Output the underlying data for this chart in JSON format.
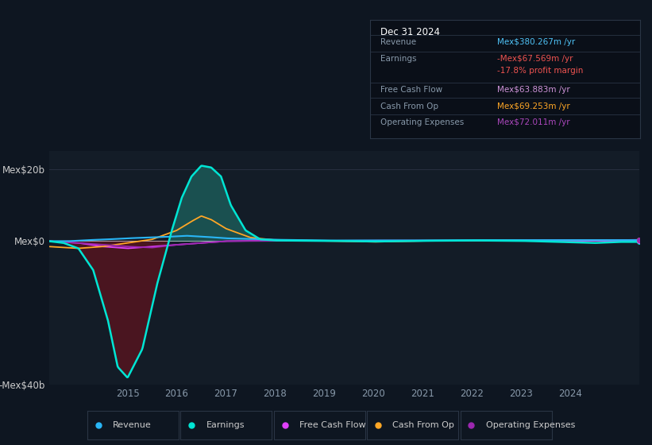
{
  "bg_color": "#0e1621",
  "plot_bg_color": "#131c27",
  "title_box": {
    "date": "Dec 31 2024",
    "rows": [
      {
        "label": "Revenue",
        "value": "Mex$380.267m /yr",
        "value_color": "#4fc3f7"
      },
      {
        "label": "Earnings",
        "value": "-Mex$67.569m /yr",
        "value_color": "#ef5350"
      },
      {
        "label": "",
        "value": "-17.8% profit margin",
        "value_color": "#ef5350"
      },
      {
        "label": "Free Cash Flow",
        "value": "Mex$63.883m /yr",
        "value_color": "#ce93d8"
      },
      {
        "label": "Cash From Op",
        "value": "Mex$69.253m /yr",
        "value_color": "#ffa726"
      },
      {
        "label": "Operating Expenses",
        "value": "Mex$72.011m /yr",
        "value_color": "#ab47bc"
      }
    ]
  },
  "ylim": [
    -40,
    25
  ],
  "yticks": [
    -40,
    0,
    20
  ],
  "ytick_labels": [
    "-Mex$40b",
    "Mex$0",
    "Mex$20b"
  ],
  "xlim": [
    2013.4,
    2025.4
  ],
  "xlabel_years": [
    2015,
    2016,
    2017,
    2018,
    2019,
    2020,
    2021,
    2022,
    2023,
    2024
  ],
  "colors": {
    "revenue": "#29b6f6",
    "earnings": "#00e5d4",
    "earnings_fill_pos": "#1a5050",
    "earnings_fill_neg": "#4a1520",
    "free_cash_flow": "#e040fb",
    "cash_from_op": "#ffa726",
    "operating_expenses": "#9c27b0"
  },
  "legend": [
    {
      "label": "Revenue",
      "color": "#29b6f6"
    },
    {
      "label": "Earnings",
      "color": "#00e5d4"
    },
    {
      "label": "Free Cash Flow",
      "color": "#e040fb"
    },
    {
      "label": "Cash From Op",
      "color": "#ffa726"
    },
    {
      "label": "Operating Expenses",
      "color": "#9c27b0"
    }
  ]
}
